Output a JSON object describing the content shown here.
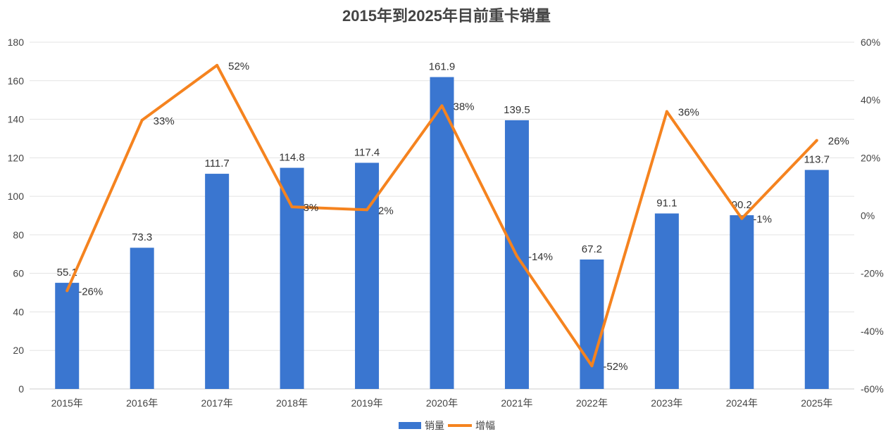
{
  "chart_data": {
    "type": "bar+line",
    "title": "2015年到2025年目前重卡销量",
    "categories": [
      "2015年",
      "2016年",
      "2017年",
      "2018年",
      "2019年",
      "2020年",
      "2021年",
      "2022年",
      "2023年",
      "2024年",
      "2025年"
    ],
    "series": [
      {
        "name": "销量",
        "type": "bar",
        "axis": "left",
        "color": "#3a76d0",
        "values": [
          55.1,
          73.3,
          111.7,
          114.8,
          117.4,
          161.9,
          139.5,
          67.2,
          91.1,
          90.2,
          113.7
        ],
        "labels": [
          "55.1",
          "73.3",
          "111.7",
          "114.8",
          "117.4",
          "161.9",
          "139.5",
          "67.2",
          "91.1",
          "90.2",
          "113.7"
        ]
      },
      {
        "name": "增幅",
        "type": "line",
        "axis": "right",
        "color": "#f5831f",
        "values": [
          -26,
          33,
          52,
          3,
          2,
          38,
          -14,
          -52,
          36,
          -1,
          26
        ],
        "labels": [
          "-26%",
          "33%",
          "52%",
          "3%",
          "2%",
          "38%",
          "-14%",
          "-52%",
          "36%",
          "-1%",
          "26%"
        ]
      }
    ],
    "left_axis": {
      "ylim": [
        0,
        180
      ],
      "ticks": [
        "0",
        "20",
        "40",
        "60",
        "80",
        "100",
        "120",
        "140",
        "160",
        "180"
      ]
    },
    "right_axis": {
      "ylim": [
        -60,
        60
      ],
      "ticks": [
        "-60%",
        "-40%",
        "-20%",
        "0%",
        "20%",
        "40%",
        "60%"
      ]
    },
    "grid": true,
    "legend": "bottom-center"
  }
}
